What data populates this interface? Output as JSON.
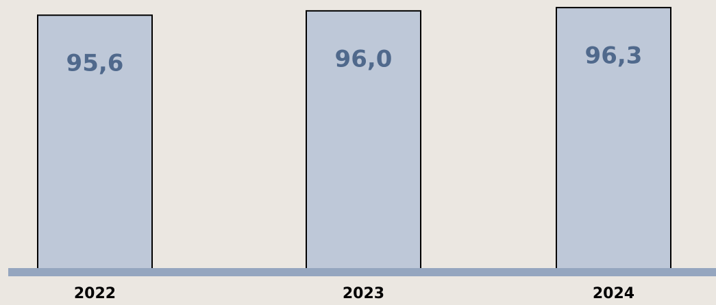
{
  "chart_data": {
    "type": "bar",
    "categories": [
      "2022",
      "2023",
      "2024"
    ],
    "values": [
      95.6,
      96.0,
      96.3
    ],
    "value_labels": [
      "95,6",
      "96,0",
      "96,3"
    ],
    "color": "#bec8d8",
    "ylim": [
      72,
      97
    ]
  }
}
